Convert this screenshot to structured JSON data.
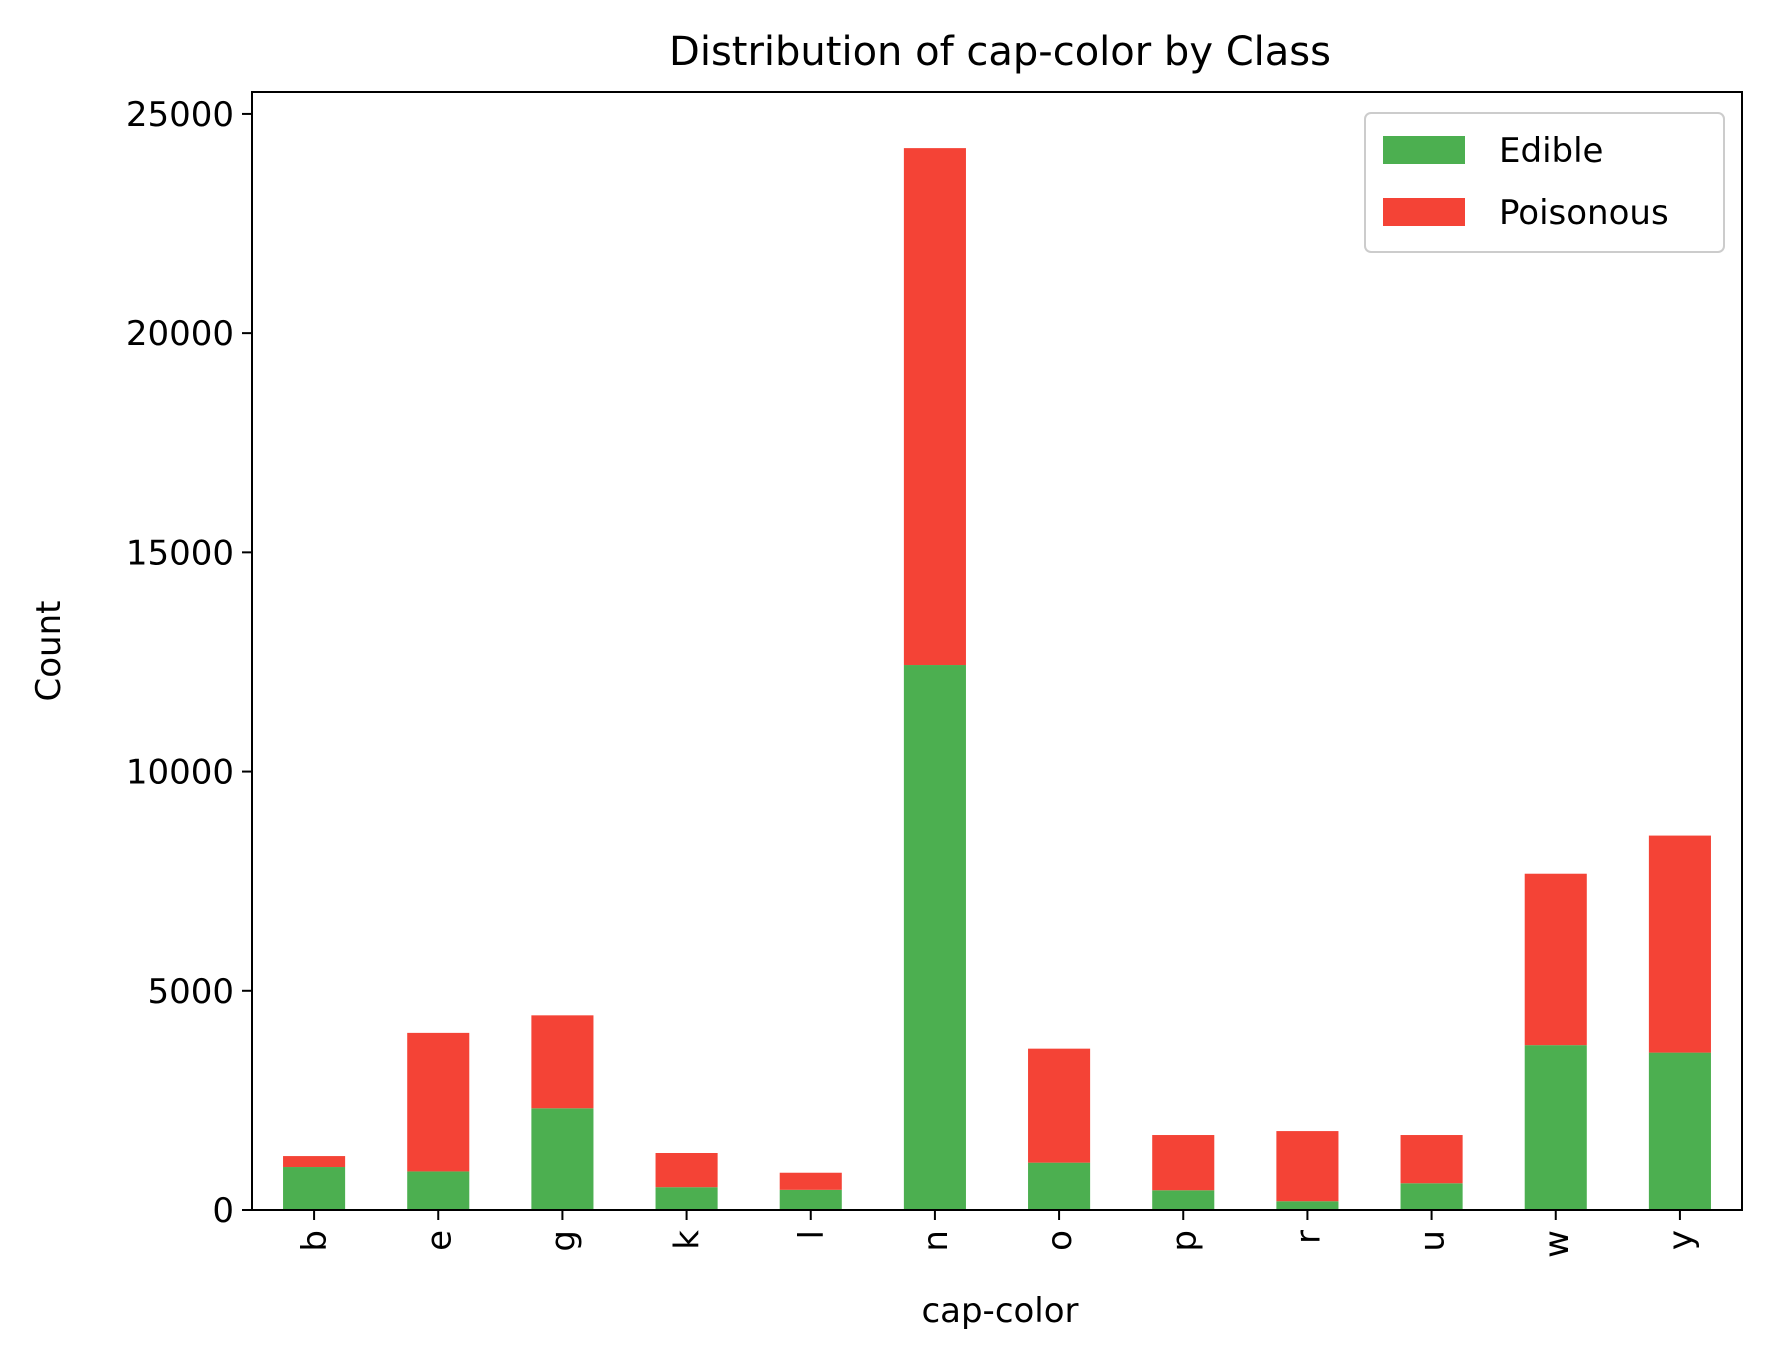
{
  "chart_data": {
    "type": "bar",
    "stacked": true,
    "title": "Distribution of cap-color by Class",
    "xlabel": "cap-color",
    "ylabel": "Count",
    "categories": [
      "b",
      "e",
      "g",
      "k",
      "l",
      "n",
      "o",
      "p",
      "r",
      "u",
      "w",
      "y"
    ],
    "series": [
      {
        "name": "Edible",
        "color": "#4caf50",
        "values": [
          980,
          880,
          2320,
          520,
          460,
          12430,
          1080,
          450,
          200,
          610,
          3760,
          3590
        ]
      },
      {
        "name": "Poisonous",
        "color": "#f44336",
        "values": [
          250,
          3160,
          2120,
          780,
          390,
          11790,
          2600,
          1260,
          1600,
          1100,
          3910,
          4950
        ]
      }
    ],
    "ylim": [
      0,
      25500
    ],
    "yticks": [
      0,
      5000,
      10000,
      15000,
      20000,
      25000
    ],
    "ytick_labels": [
      "0",
      "5000",
      "10000",
      "15000",
      "20000",
      "25000"
    ],
    "legend_position": "top-right",
    "grid": false
  }
}
